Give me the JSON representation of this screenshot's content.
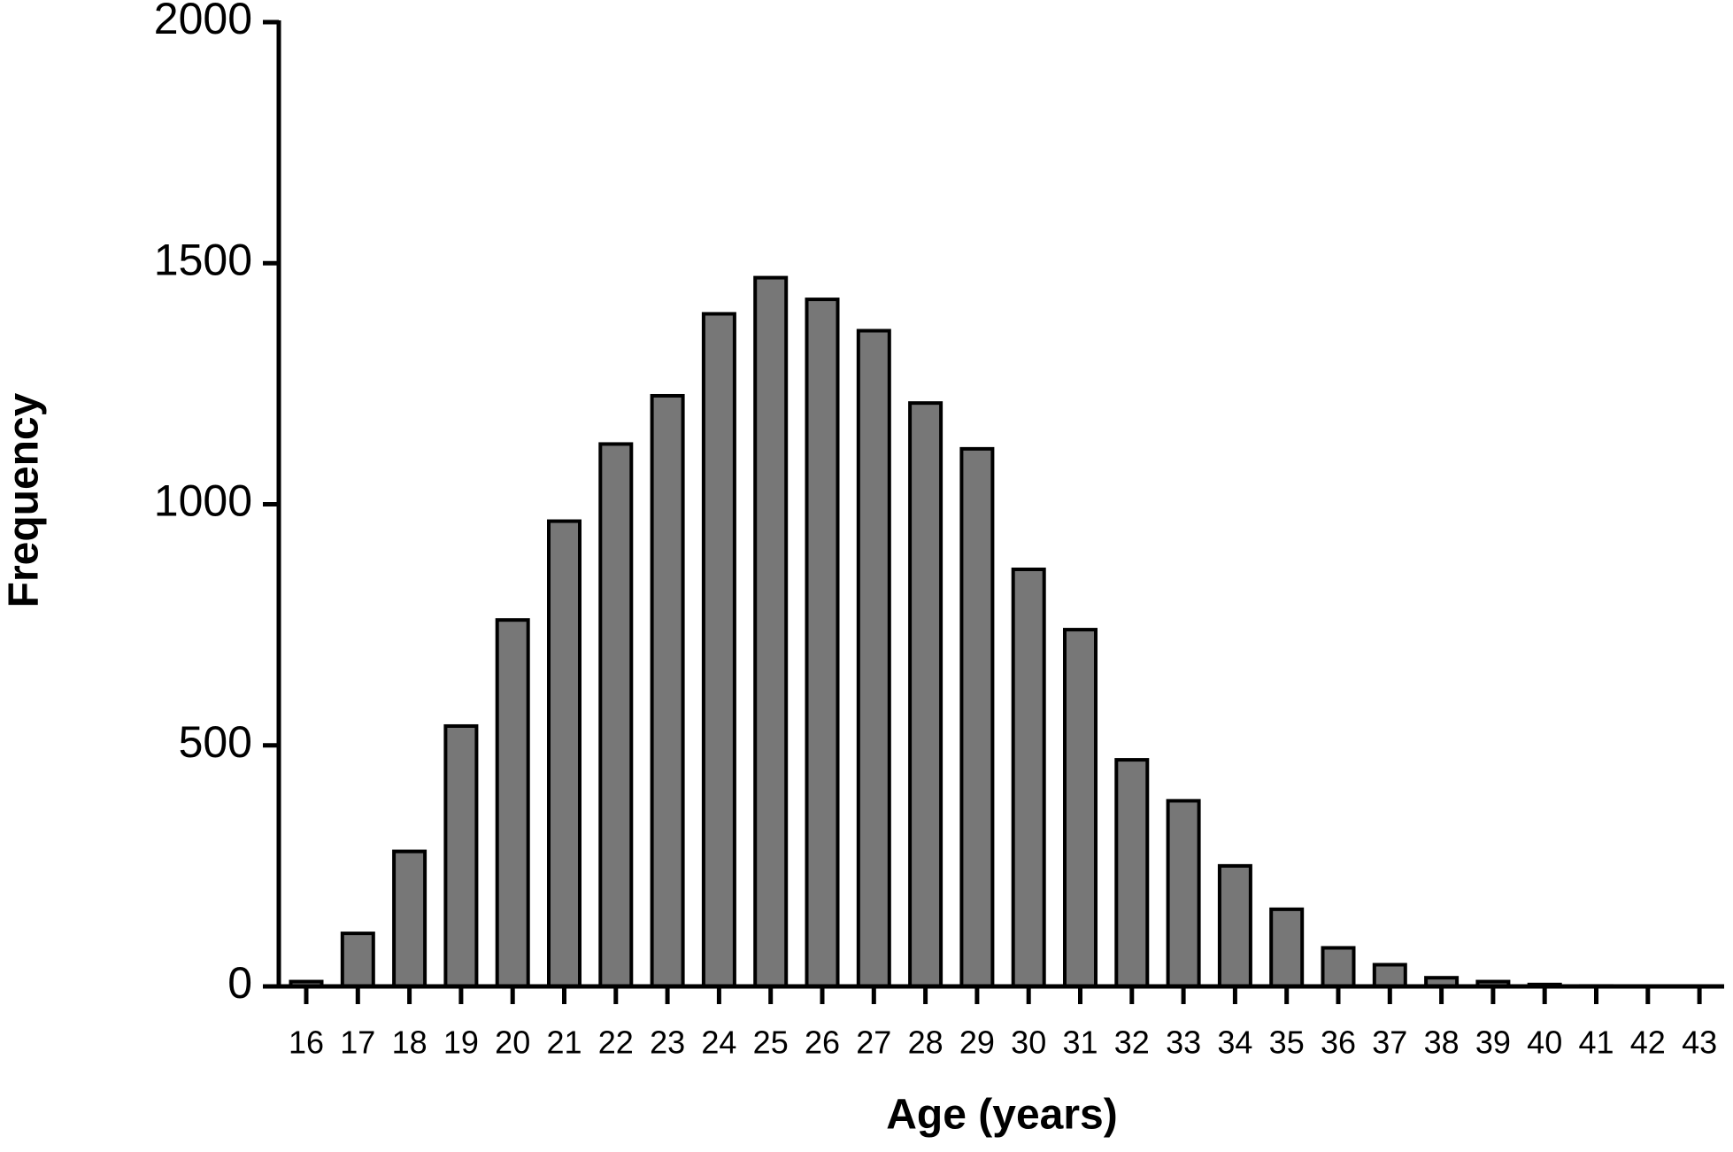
{
  "chart_data": {
    "type": "bar",
    "x_label": "Age (years)",
    "y_label": "Frequency",
    "categories": [
      "16",
      "17",
      "18",
      "19",
      "20",
      "21",
      "22",
      "23",
      "24",
      "25",
      "26",
      "27",
      "28",
      "29",
      "30",
      "31",
      "32",
      "33",
      "34",
      "35",
      "36",
      "37",
      "38",
      "39",
      "40",
      "41",
      "42",
      "43"
    ],
    "values": [
      10,
      110,
      280,
      540,
      760,
      965,
      1125,
      1225,
      1395,
      1470,
      1425,
      1360,
      1210,
      1115,
      865,
      740,
      470,
      385,
      250,
      160,
      80,
      45,
      18,
      10,
      4,
      1,
      0,
      0
    ],
    "color": "#777777",
    "edge_color": "#000000",
    "ylim": [
      0,
      2000
    ],
    "yticks": [
      0,
      500,
      1000,
      1500,
      2000
    ],
    "grid": false
  }
}
